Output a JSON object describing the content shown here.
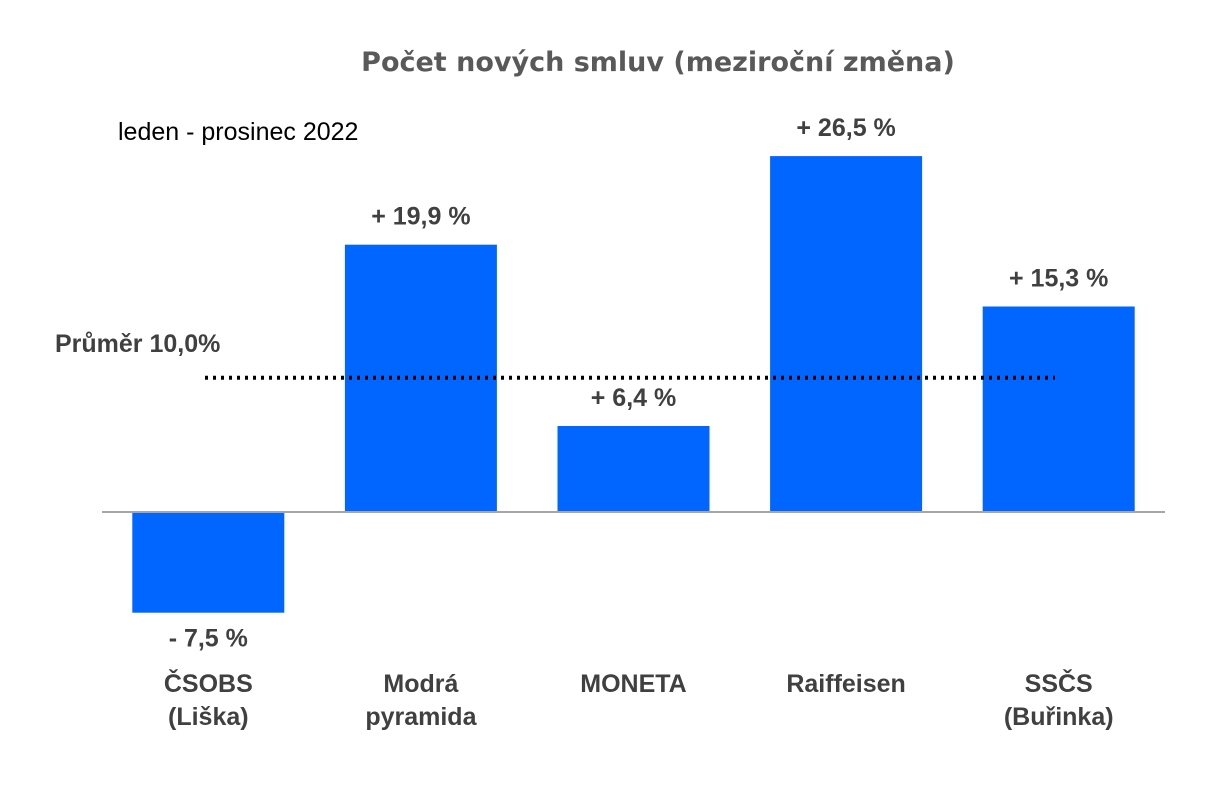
{
  "chart_data": {
    "type": "bar",
    "title": "Počet nových smluv (meziroční změna)",
    "subtitle": "leden - prosinec 2022",
    "categories": [
      [
        "ČSOBS",
        "(Liška)"
      ],
      [
        "Modrá",
        "pyramida"
      ],
      [
        "MONETA"
      ],
      [
        "Raiffeisen"
      ],
      [
        "SSČS",
        "(Buřinka)"
      ]
    ],
    "values": [
      -7.5,
      19.9,
      6.4,
      26.5,
      15.3
    ],
    "value_labels": [
      "- 7,5 %",
      "+ 19,9 %",
      "+ 6,4 %",
      "+ 26,5 %",
      "+ 15,3 %"
    ],
    "average": {
      "value": 10.0,
      "label": "Průměr 10,0%"
    },
    "ylim": [
      -10,
      30
    ],
    "grid": false,
    "legend": "none",
    "colors": {
      "bar": "#0066ff",
      "text": "#404040",
      "title": "#595959",
      "axis": "#a6a6a6",
      "average_line": "#000000"
    }
  }
}
